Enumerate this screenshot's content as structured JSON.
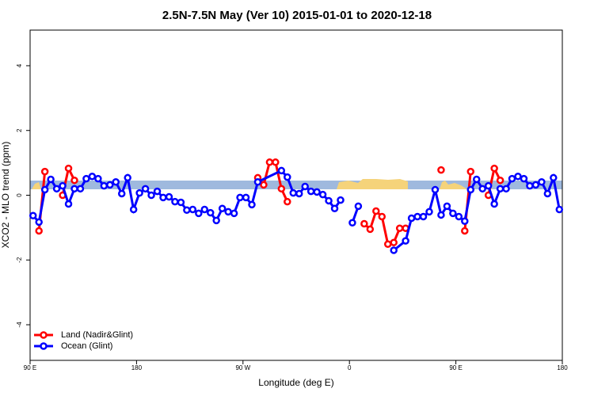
{
  "chart_data": {
    "type": "line",
    "title": "2.5N-7.5N May (Ver 10)   2015-01-01 to 2020-12-18",
    "x_label": "Longitude (deg E)",
    "y_label": "XCO2 - MLO trend (ppm)",
    "xlim": [
      90,
      540
    ],
    "ylim": [
      -5.1,
      5.1
    ],
    "xticks": [
      {
        "value": 90,
        "label": "90 E"
      },
      180,
      {
        "value": 270,
        "label": "90 W"
      },
      {
        "value": 360,
        "label": "0"
      },
      {
        "value": 450,
        "label": "90 E"
      },
      {
        "value": 540,
        "label": "180"
      }
    ],
    "yticks": [
      -4,
      -2,
      0,
      2,
      4
    ],
    "legend": "bottom-left",
    "series": [
      {
        "name": "Land (Nadir&Glint)",
        "color": "#ff0000",
        "x": [
          97.5,
          102.5,
          null,
          117.5,
          122.5,
          127.5,
          null,
          282.5,
          287.5,
          292.5,
          297.5,
          302.5,
          307.5,
          null,
          372.5,
          377.5,
          382.5,
          387.5,
          392.5,
          397.5,
          402.5,
          407.5,
          null,
          437.5,
          null,
          457.5,
          462.5,
          null,
          477.5,
          482.5,
          487.5
        ],
        "values": [
          -1.1,
          0.73,
          null,
          0,
          0.83,
          0.46,
          null,
          0.54,
          0.32,
          1.02,
          1.02,
          0.2,
          -0.2,
          null,
          -0.88,
          -1.05,
          -0.49,
          -0.66,
          -1.51,
          -1.46,
          -1.02,
          -1.02,
          null,
          0.78,
          null,
          -1.1,
          0.73,
          null,
          0,
          0.83,
          0.46
        ]
      },
      {
        "name": "Ocean (Glint)",
        "color": "#0000ff",
        "x": [
          92.5,
          97.5,
          102.5,
          107.5,
          112.5,
          117.5,
          122.5,
          127.5,
          132.5,
          137.5,
          142.5,
          147.5,
          152.5,
          157.5,
          162.5,
          167.5,
          172.5,
          177.5,
          182.5,
          187.5,
          192.5,
          197.5,
          202.5,
          207.5,
          212.5,
          217.5,
          222.5,
          227.5,
          232.5,
          237.5,
          242.5,
          247.5,
          252.5,
          257.5,
          262.5,
          267.5,
          272.5,
          277.5,
          282.5,
          302.5,
          307.5,
          312.5,
          317.5,
          322.5,
          327.5,
          332.5,
          337.5,
          342.5,
          347.5,
          352.5,
          null,
          362.5,
          367.5,
          null,
          397.5,
          407.5,
          412.5,
          417.5,
          422.5,
          427.5,
          432.5,
          437.5,
          442.5,
          447.5,
          452.5,
          457.5,
          462.5,
          467.5,
          472.5,
          477.5,
          482.5,
          487.5,
          492.5,
          497.5,
          502.5,
          507.5,
          512.5,
          517.5,
          522.5,
          527.5,
          532.5,
          537.5
        ],
        "values": [
          -0.63,
          -0.83,
          0.17,
          0.49,
          0.2,
          0.29,
          -0.27,
          0.2,
          0.2,
          0.51,
          0.58,
          0.51,
          0.29,
          0.32,
          0.41,
          0.05,
          0.54,
          -0.44,
          0.07,
          0.2,
          0,
          0.12,
          -0.07,
          -0.05,
          -0.2,
          -0.22,
          -0.46,
          -0.44,
          -0.56,
          -0.44,
          -0.54,
          -0.78,
          -0.41,
          -0.51,
          -0.56,
          -0.07,
          -0.07,
          -0.29,
          0.41,
          0.76,
          0.56,
          0.07,
          0.05,
          0.27,
          0.12,
          0.1,
          0.02,
          -0.17,
          -0.41,
          -0.15,
          null,
          -0.85,
          -0.34,
          null,
          -1.7,
          -1.41,
          -0.71,
          -0.66,
          -0.66,
          -0.51,
          0.17,
          -0.61,
          -0.34,
          -0.56,
          -0.66,
          -0.8,
          0.17,
          0.49,
          0.2,
          0.29,
          -0.27,
          0.2,
          0.2,
          0.51,
          0.58,
          0.51,
          0.29,
          0.32,
          0.41,
          0.05,
          0.54,
          -0.44
        ]
      }
    ]
  }
}
